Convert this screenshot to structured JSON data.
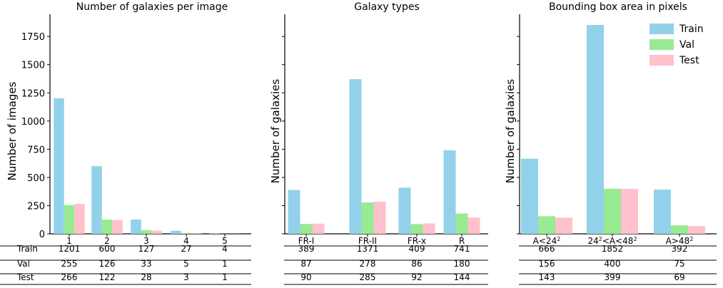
{
  "colors": {
    "Train": "#92d1ea",
    "Val": "#98ea93",
    "Test": "#ffc1cb"
  },
  "legend": [
    "Train",
    "Val",
    "Test"
  ],
  "table_row_labels": [
    "Train",
    "Val",
    "Test"
  ],
  "chart_data": [
    {
      "type": "bar",
      "title": "Number of galaxies per image",
      "ylabel": "Number of images",
      "categories": [
        "1",
        "2",
        "3",
        "4",
        "5"
      ],
      "series": [
        {
          "name": "Train",
          "values": [
            1201,
            600,
            127,
            27,
            4
          ]
        },
        {
          "name": "Val",
          "values": [
            255,
            126,
            33,
            5,
            1
          ]
        },
        {
          "name": "Test",
          "values": [
            266,
            122,
            28,
            3,
            1
          ]
        }
      ],
      "ylim": [
        0,
        1950
      ],
      "yticks": [
        "0",
        "250",
        "500",
        "750",
        "1000",
        "1250",
        "1500",
        "1750"
      ],
      "grid": false
    },
    {
      "type": "bar",
      "title": "Galaxy types",
      "ylabel": "Number of galaxies",
      "categories": [
        "FR-I",
        "FR-II",
        "FR-x",
        "R"
      ],
      "series": [
        {
          "name": "Train",
          "values": [
            389,
            1371,
            409,
            741
          ]
        },
        {
          "name": "Val",
          "values": [
            87,
            278,
            86,
            180
          ]
        },
        {
          "name": "Test",
          "values": [
            90,
            285,
            92,
            144
          ]
        }
      ],
      "ylim": [
        0,
        1950
      ],
      "grid": false
    },
    {
      "type": "bar",
      "title": "Bounding box area in pixels",
      "ylabel": "Number of galaxies",
      "categories": [
        "A<24²",
        "24²<A<48²",
        "A>48²"
      ],
      "series": [
        {
          "name": "Train",
          "values": [
            666,
            1852,
            392
          ]
        },
        {
          "name": "Val",
          "values": [
            156,
            400,
            75
          ]
        },
        {
          "name": "Test",
          "values": [
            143,
            399,
            69
          ]
        }
      ],
      "ylim": [
        0,
        1950
      ],
      "grid": false,
      "legend_position": "top-right"
    }
  ]
}
